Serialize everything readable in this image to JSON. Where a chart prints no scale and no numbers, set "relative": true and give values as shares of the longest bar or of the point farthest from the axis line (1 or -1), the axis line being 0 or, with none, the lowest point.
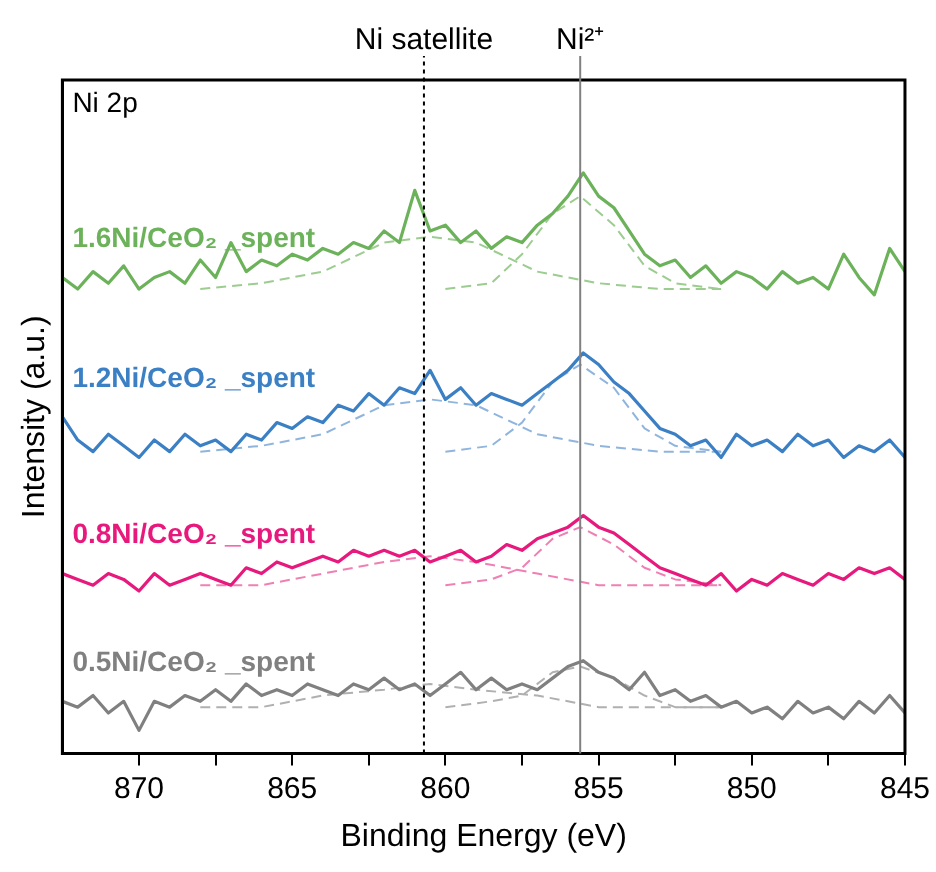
{
  "chart_data": {
    "type": "line",
    "relative": true,
    "xlabel": "Binding Energy (eV)",
    "ylabel": "Intensity (a.u.)",
    "annotations": [
      "Ni 2p"
    ],
    "xlim": [
      872.5,
      845
    ],
    "xticks": [
      870,
      {
        "value": 867.5,
        "label": null
      },
      865,
      {
        "value": 862.5,
        "label": null
      },
      860,
      {
        "value": 857.5,
        "label": null
      },
      855,
      {
        "value": 852.5,
        "label": null
      },
      850,
      {
        "value": 847.5,
        "label": null
      },
      845
    ],
    "grid": false,
    "legend": false,
    "marker": "none",
    "ref_lines": [
      {
        "axis": "x",
        "value": 860.7,
        "label": "Ni satellite",
        "line_style": "dotted",
        "color": "#000000"
      },
      {
        "axis": "x",
        "value": 855.6,
        "label": "Ni²⁺",
        "line_style": "solid",
        "color": "#808080"
      }
    ],
    "x": [
      872.5,
      872,
      871.5,
      871,
      870.5,
      870,
      869.5,
      869,
      868.5,
      868,
      867.5,
      867,
      866.5,
      866,
      865.5,
      865,
      864.5,
      864,
      863.5,
      863,
      862.5,
      862,
      861.5,
      861,
      860.5,
      860,
      859.5,
      859,
      858.5,
      858,
      857.5,
      857,
      856.5,
      856,
      855.5,
      855,
      854.5,
      854,
      853.5,
      853,
      852.5,
      852,
      851.5,
      851,
      850.5,
      850,
      849.5,
      849,
      848.5,
      848,
      847.5,
      847,
      846.5,
      846,
      845.5,
      845
    ],
    "series": [
      {
        "name": "1.6Ni/CeO₂ _spent",
        "color": "#6cb25a",
        "line_style": "solid",
        "values": [
          0.82,
          0.8,
          0.83,
          0.81,
          0.84,
          0.8,
          0.82,
          0.83,
          0.81,
          0.85,
          0.82,
          0.88,
          0.83,
          0.85,
          0.84,
          0.86,
          0.85,
          0.87,
          0.86,
          0.88,
          0.87,
          0.9,
          0.88,
          0.97,
          0.9,
          0.91,
          0.88,
          0.9,
          0.87,
          0.89,
          0.88,
          0.91,
          0.93,
          0.96,
          1.0,
          0.96,
          0.94,
          0.9,
          0.86,
          0.84,
          0.85,
          0.82,
          0.84,
          0.81,
          0.83,
          0.82,
          0.8,
          0.83,
          0.81,
          0.82,
          0.8,
          0.86,
          0.82,
          0.79,
          0.87,
          0.83
        ]
      },
      {
        "name": "1.2Ni/CeO₂ _spent",
        "color": "#3b7fc4",
        "line_style": "solid",
        "values": [
          0.58,
          0.54,
          0.52,
          0.55,
          0.53,
          0.51,
          0.54,
          0.52,
          0.55,
          0.53,
          0.54,
          0.52,
          0.55,
          0.54,
          0.57,
          0.56,
          0.58,
          0.57,
          0.6,
          0.59,
          0.62,
          0.6,
          0.63,
          0.62,
          0.66,
          0.61,
          0.63,
          0.6,
          0.62,
          0.61,
          0.6,
          0.62,
          0.64,
          0.66,
          0.69,
          0.67,
          0.64,
          0.62,
          0.59,
          0.56,
          0.55,
          0.53,
          0.54,
          0.51,
          0.55,
          0.53,
          0.54,
          0.52,
          0.55,
          0.53,
          0.54,
          0.51,
          0.53,
          0.52,
          0.54,
          0.51
        ]
      },
      {
        "name": "0.8Ni/CeO₂ _spent",
        "color": "#e8197d",
        "line_style": "solid",
        "values": [
          0.31,
          0.3,
          0.29,
          0.31,
          0.3,
          0.28,
          0.31,
          0.29,
          0.3,
          0.31,
          0.3,
          0.29,
          0.32,
          0.31,
          0.33,
          0.32,
          0.33,
          0.34,
          0.33,
          0.35,
          0.34,
          0.35,
          0.34,
          0.35,
          0.33,
          0.34,
          0.35,
          0.33,
          0.34,
          0.36,
          0.35,
          0.37,
          0.38,
          0.39,
          0.41,
          0.39,
          0.38,
          0.36,
          0.34,
          0.32,
          0.31,
          0.3,
          0.29,
          0.31,
          0.28,
          0.3,
          0.29,
          0.31,
          0.3,
          0.29,
          0.31,
          0.3,
          0.32,
          0.31,
          0.32,
          0.3
        ]
      },
      {
        "name": "0.5Ni/CeO₂ _spent",
        "color": "#808080",
        "line_style": "solid",
        "values": [
          0.09,
          0.08,
          0.1,
          0.07,
          0.09,
          0.04,
          0.09,
          0.08,
          0.1,
          0.09,
          0.11,
          0.09,
          0.12,
          0.1,
          0.11,
          0.1,
          0.12,
          0.11,
          0.1,
          0.12,
          0.11,
          0.13,
          0.11,
          0.12,
          0.1,
          0.12,
          0.14,
          0.11,
          0.13,
          0.11,
          0.12,
          0.11,
          0.13,
          0.15,
          0.16,
          0.14,
          0.13,
          0.11,
          0.14,
          0.1,
          0.11,
          0.09,
          0.1,
          0.08,
          0.09,
          0.07,
          0.08,
          0.06,
          0.09,
          0.07,
          0.08,
          0.06,
          0.09,
          0.07,
          0.1,
          0.07
        ]
      },
      {
        "color": "#9ccc8f",
        "line_style": "dashed",
        "x": [
          868,
          866,
          864,
          862,
          860.5,
          859,
          857,
          855,
          853,
          851
        ],
        "values": [
          0.8,
          0.81,
          0.83,
          0.88,
          0.89,
          0.88,
          0.83,
          0.81,
          0.8,
          0.8
        ]
      },
      {
        "color": "#9ccc8f",
        "line_style": "dashed",
        "x": [
          860,
          858.5,
          857.5,
          856.5,
          855.6,
          854.5,
          853.5,
          852.5,
          851
        ],
        "values": [
          0.8,
          0.81,
          0.86,
          0.93,
          0.96,
          0.91,
          0.84,
          0.81,
          0.8
        ]
      },
      {
        "color": "#8fb5de",
        "line_style": "dashed",
        "x": [
          868,
          866,
          864,
          862,
          860.5,
          859,
          857,
          855,
          853,
          851
        ],
        "values": [
          0.52,
          0.53,
          0.55,
          0.6,
          0.61,
          0.6,
          0.55,
          0.53,
          0.52,
          0.52
        ]
      },
      {
        "color": "#8fb5de",
        "line_style": "dashed",
        "x": [
          860,
          858.5,
          857.5,
          856.5,
          855.6,
          854.5,
          853.5,
          852.5,
          851
        ],
        "values": [
          0.52,
          0.53,
          0.57,
          0.64,
          0.67,
          0.63,
          0.56,
          0.53,
          0.52
        ]
      },
      {
        "color": "#f07fb3",
        "line_style": "dashed",
        "x": [
          868,
          866,
          864,
          862,
          860.5,
          859,
          857,
          855,
          853,
          851
        ],
        "values": [
          0.29,
          0.29,
          0.31,
          0.33,
          0.34,
          0.33,
          0.31,
          0.29,
          0.29,
          0.29
        ]
      },
      {
        "color": "#f07fb3",
        "line_style": "dashed",
        "x": [
          860,
          858.5,
          857.5,
          856.5,
          855.6,
          854.5,
          853.5,
          852.5,
          851
        ],
        "values": [
          0.29,
          0.3,
          0.32,
          0.37,
          0.39,
          0.36,
          0.32,
          0.3,
          0.29
        ]
      },
      {
        "color": "#b0b0b0",
        "line_style": "dashed",
        "x": [
          868,
          866,
          864,
          862,
          860.5,
          859,
          857,
          855,
          853,
          851
        ],
        "values": [
          0.08,
          0.08,
          0.1,
          0.11,
          0.12,
          0.11,
          0.1,
          0.08,
          0.08,
          0.08
        ]
      },
      {
        "color": "#b0b0b0",
        "line_style": "dashed",
        "x": [
          860,
          858.5,
          857.5,
          856.5,
          855.6,
          854.5,
          853.5,
          852.5,
          851
        ],
        "values": [
          0.08,
          0.09,
          0.1,
          0.14,
          0.15,
          0.13,
          0.1,
          0.08,
          0.08
        ]
      }
    ]
  }
}
